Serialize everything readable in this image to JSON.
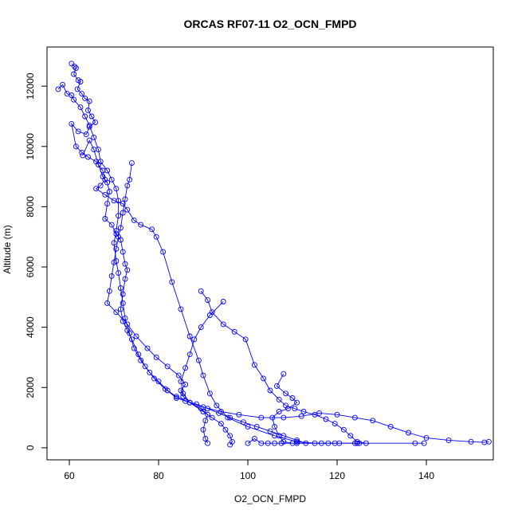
{
  "chart_data": {
    "type": "scatter",
    "title": "ORCAS RF07-11 O2_OCN_FMPD",
    "xlabel": "O2_OCN_FMPD",
    "ylabel": "Altitude (m)",
    "xlim": [
      55,
      155
    ],
    "ylim": [
      -400,
      13300
    ],
    "x_ticks": [
      60,
      80,
      100,
      120,
      140
    ],
    "y_ticks": [
      0,
      2000,
      4000,
      6000,
      8000,
      10000,
      12000
    ],
    "grid": false,
    "legend": "none",
    "series": [
      {
        "color": "#0000ff",
        "marker": "open-circle",
        "connected": true,
        "points": [
          [
            60.5,
            12750
          ],
          [
            61.2,
            12650
          ],
          [
            61.5,
            12600
          ],
          [
            61.0,
            12400
          ],
          [
            62.0,
            12200
          ],
          [
            62.5,
            12150
          ],
          [
            61.8,
            11900
          ],
          [
            62.8,
            11750
          ],
          [
            63.5,
            11600
          ],
          [
            64.5,
            11500
          ],
          [
            64.2,
            11200
          ],
          [
            65.0,
            11000
          ],
          [
            65.8,
            10800
          ],
          [
            64.5,
            10650
          ],
          [
            63.8,
            10400
          ],
          [
            62.0,
            10500
          ],
          [
            60.5,
            10750
          ],
          [
            61.5,
            10000
          ],
          [
            62.8,
            9800
          ],
          [
            64.2,
            9650
          ],
          [
            66.0,
            9500
          ],
          [
            67.5,
            9200
          ],
          [
            68.0,
            8900
          ],
          [
            67.0,
            8700
          ],
          [
            66.0,
            8600
          ],
          [
            68.0,
            8400
          ],
          [
            70.0,
            8200
          ],
          [
            72.0,
            8100
          ],
          [
            73.0,
            7900
          ],
          [
            74.5,
            7550
          ],
          [
            76.0,
            7400
          ],
          [
            78.5,
            7250
          ],
          [
            79.5,
            7000
          ],
          [
            81.0,
            6500
          ],
          [
            83.0,
            5500
          ],
          [
            85.0,
            4600
          ],
          [
            87.0,
            3700
          ],
          [
            89.0,
            2900
          ],
          [
            90.0,
            2400
          ],
          [
            91.5,
            1800
          ],
          [
            93.0,
            1400
          ],
          [
            95.5,
            1000
          ],
          [
            100.0,
            700
          ],
          [
            106.0,
            400
          ],
          [
            111.0,
            200
          ],
          [
            115.0,
            150
          ]
        ]
      },
      {
        "color": "#0000ff",
        "marker": "open-circle",
        "connected": true,
        "points": [
          [
            57.5,
            11900
          ],
          [
            58.5,
            12050
          ],
          [
            59.5,
            11750
          ],
          [
            60.5,
            11700
          ],
          [
            61.0,
            11550
          ],
          [
            62.5,
            11300
          ],
          [
            63.5,
            11000
          ],
          [
            64.5,
            10700
          ],
          [
            65.5,
            10300
          ],
          [
            66.5,
            9900
          ],
          [
            67.0,
            9500
          ],
          [
            68.5,
            9200
          ],
          [
            69.5,
            8900
          ],
          [
            70.5,
            8600
          ],
          [
            71.0,
            8200
          ],
          [
            71.0,
            7700
          ],
          [
            70.5,
            7200
          ],
          [
            70.0,
            6800
          ],
          [
            70.5,
            6200
          ],
          [
            71.0,
            5800
          ],
          [
            71.5,
            5300
          ],
          [
            72.0,
            4800
          ],
          [
            72.5,
            4300
          ],
          [
            73.5,
            3800
          ],
          [
            74.5,
            3300
          ],
          [
            76.0,
            2900
          ],
          [
            78.0,
            2500
          ],
          [
            80.0,
            2200
          ],
          [
            82.0,
            1900
          ],
          [
            84.0,
            1650
          ],
          [
            86.0,
            1550
          ],
          [
            88.5,
            1450
          ],
          [
            91.0,
            1300
          ],
          [
            93.5,
            1150
          ],
          [
            96.0,
            1000
          ],
          [
            99.0,
            850
          ],
          [
            102.0,
            700
          ],
          [
            105.0,
            550
          ],
          [
            108.0,
            400
          ],
          [
            111.0,
            250
          ],
          [
            113.0,
            150
          ]
        ]
      },
      {
        "color": "#0000ff",
        "marker": "open-circle",
        "connected": true,
        "points": [
          [
            63.0,
            9700
          ],
          [
            64.5,
            10200
          ],
          [
            65.5,
            9900
          ],
          [
            66.5,
            9400
          ],
          [
            67.5,
            9000
          ],
          [
            68.5,
            8800
          ],
          [
            69.0,
            8500
          ],
          [
            68.5,
            8100
          ],
          [
            68.0,
            7600
          ],
          [
            69.5,
            7400
          ],
          [
            70.5,
            7100
          ],
          [
            71.5,
            6900
          ],
          [
            72.0,
            6500
          ],
          [
            72.5,
            6100
          ],
          [
            73.0,
            5900
          ],
          [
            72.5,
            5600
          ],
          [
            72.0,
            5100
          ],
          [
            71.5,
            4600
          ],
          [
            72.0,
            4200
          ],
          [
            73.0,
            3900
          ],
          [
            74.0,
            3600
          ],
          [
            75.5,
            3100
          ],
          [
            77.0,
            2700
          ],
          [
            79.0,
            2300
          ],
          [
            81.5,
            1950
          ],
          [
            84.0,
            1700
          ],
          [
            87.0,
            1500
          ],
          [
            90.0,
            1350
          ],
          [
            94.0,
            1200
          ],
          [
            98.0,
            1100
          ],
          [
            103.0,
            1000
          ],
          [
            108.0,
            1000
          ],
          [
            112.0,
            1050
          ],
          [
            116.0,
            1150
          ],
          [
            120.0,
            1100
          ],
          [
            124.0,
            1000
          ],
          [
            128.0,
            900
          ],
          [
            132.0,
            700
          ],
          [
            136.0,
            500
          ],
          [
            140.0,
            330
          ],
          [
            145.0,
            250
          ],
          [
            150.0,
            200
          ],
          [
            153.0,
            180
          ],
          [
            154.0,
            200
          ]
        ]
      },
      {
        "color": "#0000ff",
        "marker": "open-circle",
        "connected": true,
        "points": [
          [
            74.0,
            9450
          ],
          [
            73.5,
            8900
          ],
          [
            73.0,
            8700
          ],
          [
            72.5,
            8250
          ],
          [
            72.0,
            7800
          ],
          [
            71.5,
            7300
          ],
          [
            71.0,
            7000
          ],
          [
            70.5,
            6600
          ],
          [
            70.0,
            6150
          ],
          [
            69.5,
            5700
          ],
          [
            69.0,
            5200
          ],
          [
            68.5,
            4800
          ],
          [
            70.5,
            4500
          ],
          [
            73.0,
            4100
          ],
          [
            75.0,
            3700
          ],
          [
            77.5,
            3300
          ],
          [
            79.5,
            3000
          ],
          [
            82.0,
            2700
          ],
          [
            84.5,
            2400
          ],
          [
            86.0,
            2100
          ],
          [
            85.0,
            1900
          ],
          [
            85.5,
            1700
          ],
          [
            87.0,
            1500
          ],
          [
            90.0,
            1200
          ],
          [
            92.0,
            1000
          ],
          [
            94.0,
            800
          ],
          [
            95.0,
            600
          ],
          [
            96.0,
            400
          ],
          [
            96.5,
            200
          ],
          [
            96.0,
            100
          ]
        ]
      },
      {
        "color": "#0000ff",
        "marker": "open-circle",
        "connected": true,
        "points": [
          [
            89.5,
            5200
          ],
          [
            91.0,
            4900
          ],
          [
            92.0,
            4500
          ],
          [
            94.5,
            4100
          ],
          [
            97.0,
            3850
          ],
          [
            99.5,
            3600
          ],
          [
            101.5,
            2750
          ],
          [
            103.5,
            2300
          ],
          [
            105.0,
            1900
          ],
          [
            107.0,
            1600
          ],
          [
            108.5,
            1400
          ],
          [
            110.5,
            1300
          ],
          [
            112.5,
            1200
          ],
          [
            115.0,
            1100
          ],
          [
            117.5,
            950
          ],
          [
            119.5,
            800
          ],
          [
            121.5,
            600
          ],
          [
            123.0,
            400
          ],
          [
            124.5,
            200
          ],
          [
            126.5,
            150
          ]
        ]
      },
      {
        "color": "#0000ff",
        "marker": "open-circle",
        "connected": true,
        "points": [
          [
            94.5,
            4850
          ],
          [
            91.5,
            4400
          ],
          [
            89.5,
            4000
          ],
          [
            88.0,
            3600
          ],
          [
            87.0,
            3100
          ],
          [
            86.0,
            2650
          ],
          [
            85.0,
            2200
          ],
          [
            85.5,
            1800
          ],
          [
            87.0,
            1500
          ],
          [
            89.5,
            1300
          ],
          [
            91.0,
            1100
          ],
          [
            90.5,
            900
          ],
          [
            90.0,
            600
          ],
          [
            90.5,
            300
          ],
          [
            91.0,
            150
          ]
        ]
      },
      {
        "color": "#0000ff",
        "marker": "open-circle",
        "connected": true,
        "points": [
          [
            108.0,
            2450
          ],
          [
            106.5,
            2050
          ],
          [
            108.5,
            1800
          ],
          [
            110.0,
            1650
          ],
          [
            111.0,
            1500
          ],
          [
            109.0,
            1300
          ],
          [
            107.0,
            1200
          ],
          [
            105.5,
            1000
          ],
          [
            106.0,
            700
          ],
          [
            107.0,
            400
          ],
          [
            108.0,
            200
          ],
          [
            110.0,
            150
          ],
          [
            118.0,
            150
          ],
          [
            125.0,
            150
          ],
          [
            137.5,
            150
          ],
          [
            139.5,
            150
          ]
        ]
      },
      {
        "color": "#0000ff",
        "marker": "open-circle",
        "connected": true,
        "points": [
          [
            100.0,
            150
          ],
          [
            101.5,
            300
          ],
          [
            103.0,
            150
          ],
          [
            104.5,
            150
          ],
          [
            106.0,
            150
          ],
          [
            107.5,
            150
          ],
          [
            111.0,
            150
          ],
          [
            116.5,
            150
          ],
          [
            119.5,
            150
          ],
          [
            120.5,
            150
          ],
          [
            124.0,
            150
          ],
          [
            124.5,
            150
          ]
        ]
      }
    ]
  }
}
